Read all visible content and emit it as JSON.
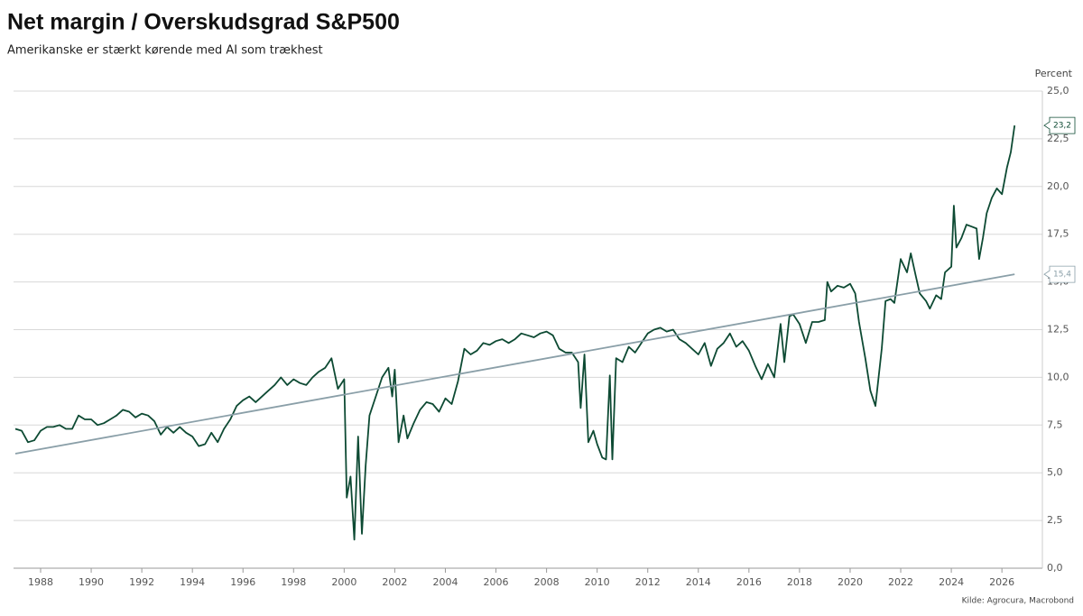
{
  "chart_data": {
    "type": "line",
    "title": "Net margin / Overskudsgrad S&P500",
    "subtitle": "Amerikanske er stærkt kørende med AI som trækhest",
    "y_label": "Percent",
    "source": "Kilde: Agrocura, Macrobond",
    "grid": true,
    "xlim": [
      1986.93,
      2027.6
    ],
    "xticks": [
      1988,
      1990,
      1992,
      1994,
      1996,
      1998,
      2000,
      2002,
      2004,
      2006,
      2008,
      2010,
      2012,
      2014,
      2016,
      2018,
      2020,
      2022,
      2024,
      2026
    ],
    "ylim": [
      0,
      25
    ],
    "yticks": [
      {
        "value": 0,
        "label": "0,0"
      },
      {
        "value": 2.5,
        "label": "2,5"
      },
      {
        "value": 5,
        "label": "5,0"
      },
      {
        "value": 7.5,
        "label": "7,5"
      },
      {
        "value": 10,
        "label": "10,0"
      },
      {
        "value": 12.5,
        "label": "12,5"
      },
      {
        "value": 15,
        "label": "15,0"
      },
      {
        "value": 17.5,
        "label": "17,5"
      },
      {
        "value": 20,
        "label": "20,0"
      },
      {
        "value": 22.5,
        "label": "22,5"
      },
      {
        "value": 25,
        "label": "25,0"
      }
    ],
    "series": [
      {
        "color": "#0d4a33",
        "end_label": "23,2",
        "x": [
          1987,
          1987.25,
          1987.5,
          1987.75,
          1988,
          1988.25,
          1988.5,
          1988.75,
          1989,
          1989.25,
          1989.5,
          1989.75,
          1990,
          1990.25,
          1990.5,
          1990.75,
          1991,
          1991.25,
          1991.5,
          1991.75,
          1992,
          1992.25,
          1992.5,
          1992.75,
          1993,
          1993.25,
          1993.5,
          1993.75,
          1994,
          1994.25,
          1994.5,
          1994.75,
          1995,
          1995.25,
          1995.5,
          1995.75,
          1996,
          1996.25,
          1996.5,
          1996.75,
          1997,
          1997.25,
          1997.5,
          1997.75,
          1998,
          1998.25,
          1998.5,
          1998.75,
          1999,
          1999.25,
          1999.5,
          1999.75,
          2000,
          2000.1,
          2000.25,
          2000.4,
          2000.55,
          2000.7,
          2000.85,
          2001,
          2001.25,
          2001.5,
          2001.75,
          2001.9,
          2002,
          2002.15,
          2002.35,
          2002.5,
          2002.75,
          2003,
          2003.25,
          2003.5,
          2003.75,
          2004,
          2004.25,
          2004.5,
          2004.75,
          2005,
          2005.25,
          2005.5,
          2005.75,
          2006,
          2006.25,
          2006.5,
          2006.75,
          2007,
          2007.25,
          2007.5,
          2007.75,
          2008,
          2008.25,
          2008.5,
          2008.75,
          2009,
          2009.25,
          2009.35,
          2009.5,
          2009.65,
          2009.85,
          2010,
          2010.2,
          2010.35,
          2010.5,
          2010.6,
          2010.75,
          2011,
          2011.25,
          2011.5,
          2011.75,
          2012,
          2012.25,
          2012.5,
          2012.75,
          2013,
          2013.25,
          2013.5,
          2013.75,
          2014,
          2014.25,
          2014.5,
          2014.75,
          2015,
          2015.25,
          2015.5,
          2015.75,
          2016,
          2016.25,
          2016.5,
          2016.75,
          2017,
          2017.25,
          2017.4,
          2017.6,
          2017.75,
          2018,
          2018.25,
          2018.5,
          2018.75,
          2019,
          2019.1,
          2019.25,
          2019.5,
          2019.75,
          2020,
          2020.2,
          2020.35,
          2020.6,
          2020.8,
          2021,
          2021.25,
          2021.4,
          2021.6,
          2021.75,
          2022,
          2022.25,
          2022.4,
          2022.6,
          2022.75,
          2023,
          2023.15,
          2023.4,
          2023.6,
          2023.75,
          2024,
          2024.1,
          2024.2,
          2024.4,
          2024.6,
          2024.8,
          2025,
          2025.1,
          2025.25,
          2025.4,
          2025.6,
          2025.8,
          2026,
          2026.2,
          2026.35,
          2026.5
        ],
        "values": [
          7.3,
          7.2,
          6.6,
          6.7,
          7.2,
          7.4,
          7.4,
          7.5,
          7.3,
          7.3,
          8.0,
          7.8,
          7.8,
          7.5,
          7.6,
          7.8,
          8.0,
          8.3,
          8.2,
          7.9,
          8.1,
          8.0,
          7.7,
          7.0,
          7.4,
          7.1,
          7.4,
          7.1,
          6.9,
          6.4,
          6.5,
          7.1,
          6.6,
          7.3,
          7.8,
          8.5,
          8.8,
          9.0,
          8.7,
          9.0,
          9.3,
          9.6,
          10.0,
          9.6,
          9.9,
          9.7,
          9.6,
          10.0,
          10.3,
          10.5,
          11.0,
          9.4,
          9.9,
          3.7,
          4.8,
          1.5,
          6.9,
          1.8,
          5.4,
          8.0,
          9.0,
          10.0,
          10.5,
          9.0,
          10.4,
          6.6,
          8.0,
          6.8,
          7.6,
          8.3,
          8.7,
          8.6,
          8.2,
          8.9,
          8.6,
          9.8,
          11.5,
          11.2,
          11.4,
          11.8,
          11.7,
          11.9,
          12.0,
          11.8,
          12.0,
          12.3,
          12.2,
          12.1,
          12.3,
          12.4,
          12.2,
          11.5,
          11.3,
          11.3,
          10.8,
          8.4,
          11.2,
          6.6,
          7.2,
          6.5,
          5.8,
          5.7,
          10.1,
          5.7,
          11.0,
          10.8,
          11.6,
          11.3,
          11.8,
          12.3,
          12.5,
          12.6,
          12.4,
          12.5,
          12.0,
          11.8,
          11.5,
          11.2,
          11.8,
          10.6,
          11.5,
          11.8,
          12.3,
          11.6,
          11.9,
          11.4,
          10.6,
          9.9,
          10.7,
          10.0,
          12.8,
          10.8,
          13.2,
          13.3,
          12.8,
          11.8,
          12.9,
          12.9,
          13.0,
          15.0,
          14.5,
          14.8,
          14.7,
          14.9,
          14.4,
          12.9,
          11.0,
          9.3,
          8.5,
          11.5,
          14.0,
          14.1,
          13.9,
          16.2,
          15.5,
          16.5,
          15.3,
          14.4,
          14.0,
          13.6,
          14.3,
          14.1,
          15.5,
          15.8,
          19.0,
          16.8,
          17.3,
          18.0,
          17.9,
          17.8,
          16.2,
          17.3,
          18.6,
          19.4,
          19.9,
          19.6,
          21.0,
          21.8,
          23.2
        ]
      },
      {
        "color": "#8a9fa8",
        "end_label": "15,4",
        "x": [
          1987,
          2026.5
        ],
        "values": [
          6.0,
          15.4
        ]
      }
    ]
  }
}
